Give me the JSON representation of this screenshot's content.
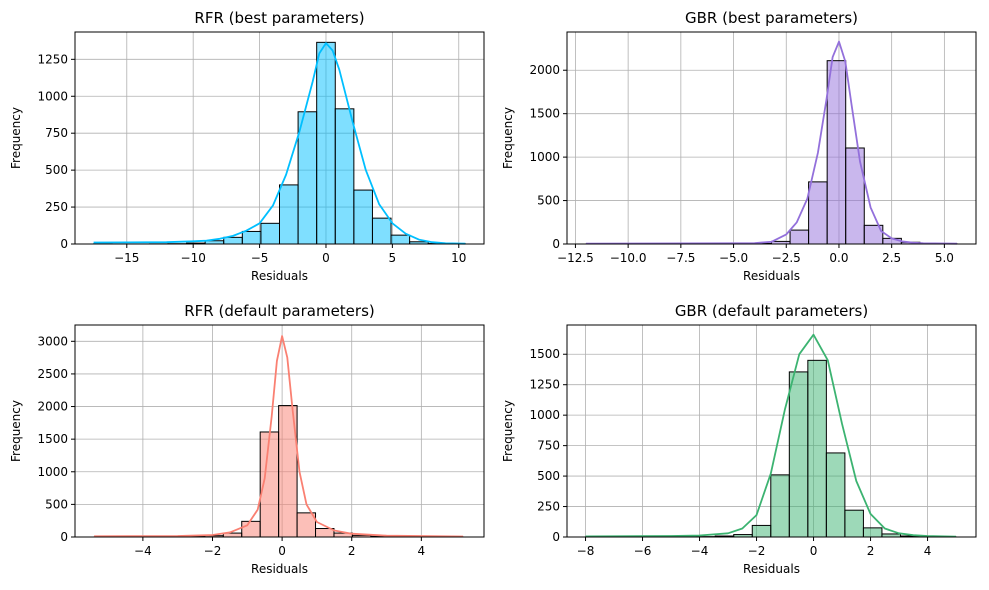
{
  "chart_data": [
    {
      "type": "bar",
      "title": "RFR (best parameters)",
      "xlabel": "Residuals",
      "ylabel": "Frequency",
      "xlim": [
        -18.9,
        11.9
      ],
      "ylim": [
        0,
        1435
      ],
      "xticks": [
        -15,
        -10,
        -5,
        0,
        5,
        10
      ],
      "xtick_labels": [
        "−15",
        "−10",
        "−5",
        "0",
        "5",
        "10"
      ],
      "yticks": [
        0,
        250,
        500,
        750,
        1000,
        1250
      ],
      "yticks_labels": [
        "0",
        "250",
        "500",
        "750",
        "1000",
        "1250"
      ],
      "grid": true,
      "bin_edges": [
        -17.5,
        -16.1,
        -14.7,
        -13.3,
        -11.9,
        -10.5,
        -9.1,
        -7.7,
        -6.3,
        -4.9,
        -3.5,
        -2.1,
        -0.7,
        0.7,
        2.1,
        3.5,
        4.9,
        6.3,
        7.7,
        9.1,
        10.5
      ],
      "counts": [
        1,
        0,
        0,
        1,
        2,
        6,
        22,
        45,
        85,
        140,
        400,
        895,
        1365,
        915,
        365,
        175,
        60,
        15,
        3,
        1
      ],
      "kde_x": [
        -17.5,
        -12,
        -10,
        -9,
        -8,
        -7,
        -6,
        -5,
        -4,
        -3,
        -2,
        -1,
        -0.5,
        0,
        0.5,
        1,
        2,
        3,
        4,
        5,
        6,
        7,
        8,
        9,
        10.5
      ],
      "kde_y": [
        10,
        12,
        18,
        22,
        35,
        55,
        90,
        140,
        260,
        470,
        760,
        1100,
        1290,
        1360,
        1310,
        1180,
        830,
        500,
        270,
        140,
        70,
        30,
        12,
        5,
        2
      ],
      "color_fill": "#00bfff",
      "color_line": "#00bfff"
    },
    {
      "type": "bar",
      "title": "GBR (best parameters)",
      "xlabel": "Residuals",
      "ylabel": "Frequency",
      "xlim": [
        -12.9,
        6.5
      ],
      "ylim": [
        0,
        2440
      ],
      "xticks": [
        -12.5,
        -10,
        -7.5,
        -5,
        -2.5,
        0,
        2.5,
        5
      ],
      "xtick_labels": [
        "−12.5",
        "−10.0",
        "−7.5",
        "−5.0",
        "−2.5",
        "0.0",
        "2.5",
        "5.0"
      ],
      "yticks": [
        0,
        500,
        1000,
        1500,
        2000
      ],
      "yticks_labels": [
        "0",
        "500",
        "1000",
        "1500",
        "2000"
      ],
      "grid": true,
      "bin_edges": [
        -12.0,
        -11.12,
        -10.24,
        -9.36,
        -8.48,
        -7.6,
        -6.72,
        -5.84,
        -4.96,
        -4.08,
        -3.2,
        -2.32,
        -1.44,
        -0.56,
        0.32,
        1.2,
        2.08,
        2.96,
        3.84,
        4.72,
        5.6
      ],
      "counts": [
        1,
        0,
        0,
        0,
        0,
        0,
        1,
        2,
        3,
        6,
        30,
        160,
        715,
        2110,
        1105,
        215,
        65,
        20,
        5,
        2
      ],
      "kde_x": [
        -12,
        -5,
        -4,
        -3.2,
        -2.5,
        -2,
        -1.5,
        -1,
        -0.6,
        -0.3,
        0,
        0.3,
        0.6,
        1,
        1.5,
        2,
        2.5,
        3,
        3.5,
        4,
        5.6
      ],
      "kde_y": [
        5,
        8,
        10,
        25,
        110,
        250,
        520,
        1050,
        1650,
        2150,
        2330,
        2100,
        1600,
        950,
        420,
        150,
        65,
        30,
        15,
        8,
        3
      ],
      "color_fill": "#9370db",
      "color_line": "#9370db"
    },
    {
      "type": "bar",
      "title": "RFR (default parameters)",
      "xlabel": "Residuals",
      "ylabel": "Frequency",
      "xlim": [
        -5.95,
        5.8
      ],
      "ylim": [
        0,
        3250
      ],
      "xticks": [
        -4,
        -2,
        0,
        2,
        4
      ],
      "xtick_labels": [
        "−4",
        "−2",
        "0",
        "2",
        "4"
      ],
      "yticks": [
        0,
        500,
        1000,
        1500,
        2000,
        2500,
        3000
      ],
      "yticks_labels": [
        "0",
        "500",
        "1000",
        "1500",
        "2000",
        "2500",
        "3000"
      ],
      "grid": true,
      "bin_edges": [
        -5.4,
        -4.87,
        -4.34,
        -3.81,
        -3.28,
        -2.75,
        -2.22,
        -1.69,
        -1.16,
        -0.63,
        -0.1,
        0.43,
        0.96,
        1.49,
        2.02,
        2.55,
        3.08,
        3.61,
        4.14,
        4.67,
        5.2
      ],
      "counts": [
        1,
        1,
        2,
        3,
        5,
        10,
        20,
        60,
        240,
        1610,
        2015,
        370,
        130,
        60,
        25,
        12,
        6,
        3,
        2,
        1
      ],
      "kde_x": [
        -5.4,
        -3,
        -2,
        -1.5,
        -1,
        -0.7,
        -0.5,
        -0.3,
        -0.15,
        0,
        0.15,
        0.3,
        0.5,
        0.7,
        1,
        1.5,
        2,
        3,
        5.2
      ],
      "kde_y": [
        10,
        15,
        30,
        70,
        180,
        420,
        900,
        1850,
        2700,
        3080,
        2750,
        1950,
        1000,
        500,
        230,
        100,
        50,
        20,
        8
      ],
      "color_fill": "#fa8072",
      "color_line": "#fa8072"
    },
    {
      "type": "bar",
      "title": "GBR (default parameters)",
      "xlabel": "Residuals",
      "ylabel": "Frequency",
      "xlim": [
        -8.65,
        5.7
      ],
      "ylim": [
        0,
        1740
      ],
      "xticks": [
        -8,
        -6,
        -4,
        -2,
        0,
        2,
        4
      ],
      "xtick_labels": [
        "−8",
        "−6",
        "−4",
        "−2",
        "0",
        "2",
        "4"
      ],
      "yticks": [
        0,
        250,
        500,
        750,
        1000,
        1250,
        1500
      ],
      "yticks_labels": [
        "0",
        "250",
        "500",
        "750",
        "1000",
        "1250",
        "1500"
      ],
      "grid": true,
      "bin_edges": [
        -8.0,
        -7.35,
        -6.7,
        -6.05,
        -5.4,
        -4.75,
        -4.1,
        -3.45,
        -2.8,
        -2.15,
        -1.5,
        -0.85,
        -0.2,
        0.45,
        1.1,
        1.75,
        2.4,
        3.05,
        3.7,
        4.35,
        5.0
      ],
      "counts": [
        1,
        0,
        0,
        1,
        1,
        2,
        3,
        8,
        20,
        95,
        510,
        1355,
        1450,
        690,
        220,
        75,
        25,
        8,
        3,
        1
      ],
      "kde_x": [
        -8,
        -5,
        -4,
        -3,
        -2.5,
        -2,
        -1.5,
        -1,
        -0.5,
        0,
        0.5,
        1,
        1.5,
        2,
        2.5,
        3,
        3.5,
        4,
        5
      ],
      "kde_y": [
        5,
        8,
        12,
        30,
        70,
        180,
        520,
        1050,
        1500,
        1660,
        1450,
        930,
        460,
        190,
        70,
        30,
        15,
        8,
        3
      ],
      "color_fill": "#3cb371",
      "color_line": "#3cb371"
    }
  ]
}
